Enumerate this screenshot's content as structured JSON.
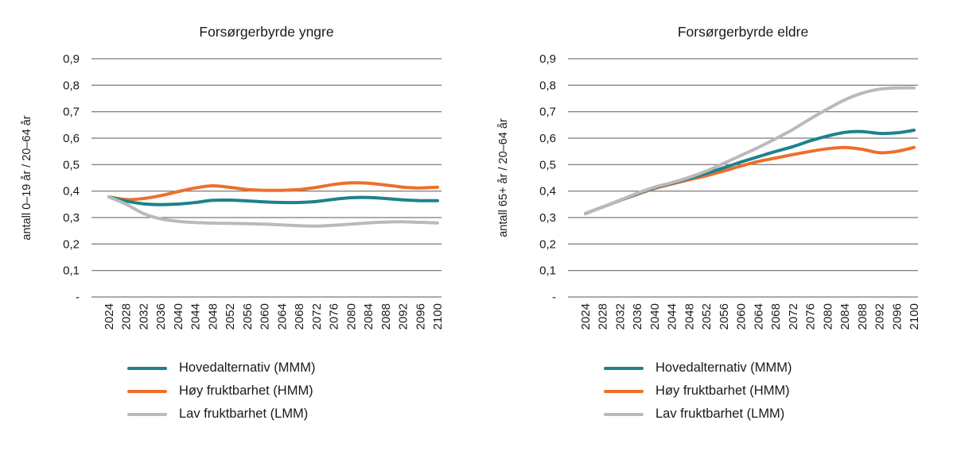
{
  "colors": {
    "mmm_teal": "#1D828C",
    "hmm_orange": "#ED6F2C",
    "lmm_gray": "#BABABA",
    "gridline": "#595959",
    "text": "#1a1a1a"
  },
  "chart_data": [
    {
      "type": "line",
      "title": "Forsørgerbyrde yngre",
      "ylabel": "antall 0–19 år / 20–64 år",
      "xlabel": "",
      "ylim": [
        0,
        0.9
      ],
      "grid": true,
      "legend_position": "bottom",
      "yticks": [
        {
          "value": 0.0,
          "label": "-"
        },
        {
          "value": 0.1,
          "label": "0,1"
        },
        {
          "value": 0.2,
          "label": "0,2"
        },
        {
          "value": 0.3,
          "label": "0,3"
        },
        {
          "value": 0.4,
          "label": "0,4"
        },
        {
          "value": 0.5,
          "label": "0,5"
        },
        {
          "value": 0.6,
          "label": "0,6"
        },
        {
          "value": 0.7,
          "label": "0,7"
        },
        {
          "value": 0.8,
          "label": "0,8"
        },
        {
          "value": 0.9,
          "label": "0,9"
        }
      ],
      "categories": [
        2024,
        2028,
        2032,
        2036,
        2040,
        2044,
        2048,
        2052,
        2056,
        2060,
        2064,
        2068,
        2072,
        2076,
        2080,
        2084,
        2088,
        2092,
        2096,
        2100
      ],
      "series": [
        {
          "name": "Hovedalternativ (MMM)",
          "color": "#1D828C",
          "values": [
            0.378,
            0.362,
            0.352,
            0.349,
            0.351,
            0.357,
            0.365,
            0.366,
            0.363,
            0.359,
            0.357,
            0.357,
            0.361,
            0.369,
            0.375,
            0.376,
            0.372,
            0.367,
            0.364,
            0.364
          ]
        },
        {
          "name": "Høy fruktbarhet (HMM)",
          "color": "#ED6F2C",
          "values": [
            0.378,
            0.368,
            0.372,
            0.383,
            0.398,
            0.412,
            0.42,
            0.414,
            0.406,
            0.403,
            0.403,
            0.406,
            0.414,
            0.425,
            0.431,
            0.43,
            0.423,
            0.415,
            0.412,
            0.415
          ]
        },
        {
          "name": "Lav fruktbarhet (LMM)",
          "color": "#BABABA",
          "values": [
            0.378,
            0.35,
            0.315,
            0.295,
            0.286,
            0.281,
            0.279,
            0.278,
            0.277,
            0.275,
            0.272,
            0.269,
            0.268,
            0.271,
            0.275,
            0.28,
            0.283,
            0.284,
            0.282,
            0.28
          ]
        }
      ]
    },
    {
      "type": "line",
      "title": "Forsørgerbyrde eldre",
      "ylabel": "antall 65+ år / 20–64 år",
      "xlabel": "",
      "ylim": [
        0,
        0.9
      ],
      "grid": true,
      "legend_position": "bottom",
      "yticks": [
        {
          "value": 0.0,
          "label": "-"
        },
        {
          "value": 0.1,
          "label": "0,1"
        },
        {
          "value": 0.2,
          "label": "0,2"
        },
        {
          "value": 0.3,
          "label": "0,3"
        },
        {
          "value": 0.4,
          "label": "0,4"
        },
        {
          "value": 0.5,
          "label": "0,5"
        },
        {
          "value": 0.6,
          "label": "0,6"
        },
        {
          "value": 0.7,
          "label": "0,7"
        },
        {
          "value": 0.8,
          "label": "0,8"
        },
        {
          "value": 0.9,
          "label": "0,9"
        }
      ],
      "categories": [
        2024,
        2028,
        2032,
        2036,
        2040,
        2044,
        2048,
        2052,
        2056,
        2060,
        2064,
        2068,
        2072,
        2076,
        2080,
        2084,
        2088,
        2092,
        2096,
        2100
      ],
      "series": [
        {
          "name": "Hovedalternativ (MMM)",
          "color": "#1D828C",
          "values": [
            0.315,
            0.34,
            0.365,
            0.39,
            0.413,
            0.43,
            0.448,
            0.467,
            0.488,
            0.51,
            0.53,
            0.55,
            0.568,
            0.59,
            0.608,
            0.622,
            0.625,
            0.618,
            0.62,
            0.63
          ]
        },
        {
          "name": "Høy fruktbarhet (HMM)",
          "color": "#ED6F2C",
          "values": [
            0.315,
            0.34,
            0.365,
            0.388,
            0.41,
            0.427,
            0.443,
            0.458,
            0.476,
            0.495,
            0.512,
            0.525,
            0.538,
            0.55,
            0.56,
            0.565,
            0.558,
            0.545,
            0.55,
            0.565
          ]
        },
        {
          "name": "Lav fruktbarhet (LMM)",
          "color": "#BABABA",
          "values": [
            0.315,
            0.34,
            0.366,
            0.392,
            0.415,
            0.432,
            0.452,
            0.476,
            0.505,
            0.535,
            0.565,
            0.598,
            0.633,
            0.673,
            0.71,
            0.745,
            0.77,
            0.785,
            0.79,
            0.79
          ]
        }
      ]
    }
  ]
}
